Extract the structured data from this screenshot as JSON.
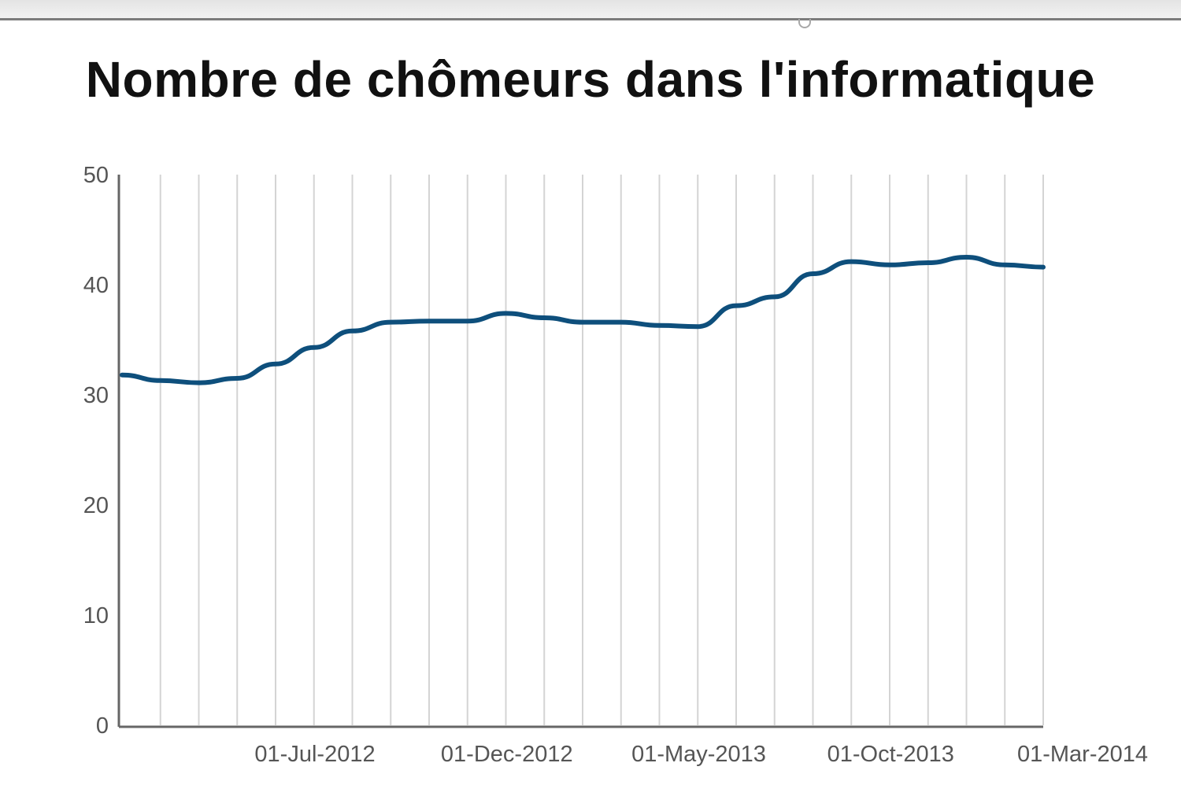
{
  "chart_data": {
    "type": "line",
    "title": "Nombre de chômeurs dans l'informatique",
    "xlabel": "",
    "ylabel": "",
    "ylim": [
      0,
      50
    ],
    "y_ticks": [
      "0",
      "10",
      "20",
      "30",
      "40",
      "50"
    ],
    "x": [
      "2012-03-01",
      "2012-04-01",
      "2012-05-01",
      "2012-06-01",
      "2012-07-01",
      "2012-08-01",
      "2012-09-01",
      "2012-10-01",
      "2012-11-01",
      "2012-12-01",
      "2013-01-01",
      "2013-02-01",
      "2013-03-01",
      "2013-04-01",
      "2013-05-01",
      "2013-06-01",
      "2013-07-01",
      "2013-08-01",
      "2013-09-01",
      "2013-10-01",
      "2013-11-01",
      "2013-12-01",
      "2014-01-01",
      "2014-02-01",
      "2014-03-01"
    ],
    "x_tick_labels": [
      {
        "date": "2012-07-01",
        "label": "01-Jul-2012"
      },
      {
        "date": "2012-12-01",
        "label": "01-Dec-2012"
      },
      {
        "date": "2013-05-01",
        "label": "01-May-2013"
      },
      {
        "date": "2013-10-01",
        "label": "01-Oct-2013"
      },
      {
        "date": "2014-03-01",
        "label": "01-Mar-2014"
      }
    ],
    "series": [
      {
        "values": [
          31.8,
          31.3,
          31.1,
          31.5,
          32.8,
          34.3,
          35.8,
          36.6,
          36.7,
          36.7,
          37.4,
          37.0,
          36.6,
          36.6,
          36.3,
          36.2,
          38.1,
          38.9,
          41.0,
          42.1,
          41.8,
          42.0,
          42.5,
          41.8,
          41.6
        ],
        "color": "#0e4f7c"
      }
    ],
    "grid": {
      "vertical": true,
      "horizontal": false
    },
    "legend": "none"
  }
}
